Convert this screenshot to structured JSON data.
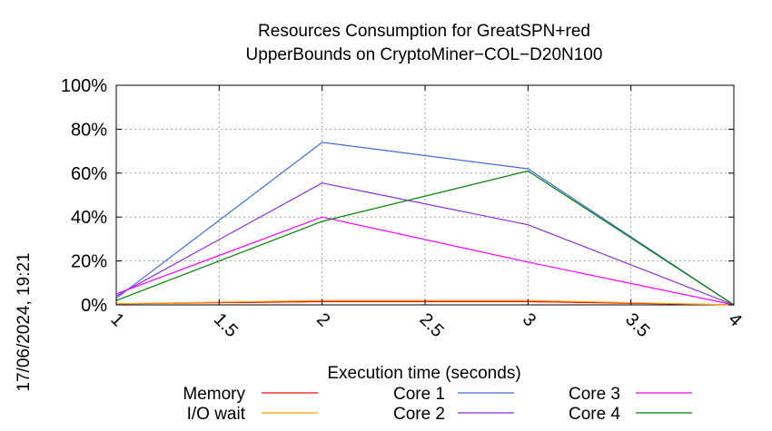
{
  "chart_data": {
    "type": "line",
    "title": "Resources Consumption for GreatSPN+red",
    "subtitle": "UpperBounds on CryptoMiner−COL−D20N100",
    "xlabel": "Execution time (seconds)",
    "ylabel": "",
    "xlim": [
      1,
      4
    ],
    "ylim": [
      0,
      100
    ],
    "x_ticks": [
      "1",
      "1.5",
      "2",
      "2.5",
      "3",
      "3.5",
      "4"
    ],
    "y_ticks": [
      "0%",
      "20%",
      "40%",
      "60%",
      "80%",
      "100%"
    ],
    "grid": true,
    "legend_position": "bottom",
    "timestamp": "17/06/2024, 19:21",
    "x": [
      1,
      2,
      3,
      4
    ],
    "series": [
      {
        "name": "Memory",
        "color": "#ff0000",
        "values": [
          0.5,
          1.5,
          1.5,
          0
        ]
      },
      {
        "name": "I/O wait",
        "color": "#ffa500",
        "values": [
          0.5,
          2,
          2,
          0
        ]
      },
      {
        "name": "Core 1",
        "color": "#4169e1",
        "values": [
          3,
          74,
          62,
          0
        ]
      },
      {
        "name": "Core 2",
        "color": "#8a2be2",
        "values": [
          4,
          55.5,
          36.5,
          0
        ]
      },
      {
        "name": "Core 3",
        "color": "#ff00ff",
        "values": [
          5,
          40,
          19.5,
          0
        ]
      },
      {
        "name": "Core 4",
        "color": "#008000",
        "values": [
          2,
          38,
          61,
          0
        ]
      }
    ]
  }
}
